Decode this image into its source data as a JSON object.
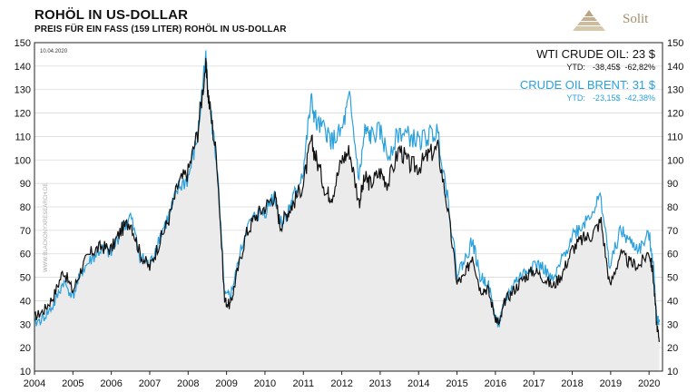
{
  "header": {
    "title": "ROHÖL IN US-DOLLAR",
    "subtitle": "PREIS FÜR EIN FASS (159 LITER)  ROHÖL IN  US-DOLLAR",
    "logo_text": "Solit"
  },
  "chart_data": {
    "type": "line",
    "date_label": "10.04.2020",
    "watermark": "WWW.BLACKONYXRESEARCH.DE",
    "ylim": [
      10,
      150
    ],
    "yticks": [
      10,
      20,
      30,
      40,
      50,
      60,
      70,
      80,
      90,
      100,
      110,
      120,
      130,
      140,
      150
    ],
    "xlim": [
      2004.0,
      2020.35
    ],
    "xticks": [
      "2004",
      "2005",
      "2006",
      "2007",
      "2008",
      "2009",
      "2010",
      "2011",
      "2012",
      "2013",
      "2014",
      "2015",
      "2016",
      "2017",
      "2018",
      "2019",
      "2020"
    ],
    "grid": "horizontal",
    "legend_position": "top-right",
    "series": [
      {
        "name": "WTI CRUDE OIL",
        "color": "#111111",
        "fill": "#ebebeb",
        "legend_value": "23 $",
        "ytd_label": "YTD:",
        "ytd_abs": "-38,45$",
        "ytd_pct": "-62,82%",
        "x": [
          2004.0,
          2004.25,
          2004.5,
          2004.75,
          2005.0,
          2005.25,
          2005.5,
          2005.75,
          2006.0,
          2006.25,
          2006.5,
          2006.75,
          2007.0,
          2007.25,
          2007.5,
          2007.75,
          2008.0,
          2008.25,
          2008.45,
          2008.55,
          2008.75,
          2008.95,
          2009.1,
          2009.25,
          2009.5,
          2009.75,
          2010.0,
          2010.25,
          2010.4,
          2010.6,
          2010.75,
          2011.0,
          2011.2,
          2011.35,
          2011.6,
          2011.75,
          2012.0,
          2012.2,
          2012.45,
          2012.6,
          2012.75,
          2013.0,
          2013.2,
          2013.5,
          2013.75,
          2014.0,
          2014.25,
          2014.5,
          2014.75,
          2015.0,
          2015.2,
          2015.4,
          2015.6,
          2015.8,
          2016.0,
          2016.1,
          2016.25,
          2016.5,
          2016.75,
          2017.0,
          2017.25,
          2017.5,
          2017.75,
          2018.0,
          2018.25,
          2018.5,
          2018.75,
          2018.98,
          2019.25,
          2019.5,
          2019.75,
          2020.0,
          2020.1,
          2020.2,
          2020.27
        ],
        "values": [
          33,
          36,
          42,
          53,
          44,
          55,
          61,
          63,
          62,
          70,
          74,
          60,
          54,
          65,
          75,
          90,
          95,
          112,
          140,
          124,
          100,
          40,
          38,
          50,
          68,
          76,
          80,
          85,
          72,
          78,
          82,
          90,
          108,
          100,
          86,
          85,
          100,
          104,
          82,
          92,
          90,
          95,
          90,
          105,
          98,
          97,
          102,
          105,
          80,
          48,
          50,
          60,
          45,
          45,
          33,
          30,
          40,
          45,
          50,
          53,
          50,
          46,
          52,
          62,
          66,
          68,
          74,
          46,
          60,
          56,
          55,
          61,
          52,
          30,
          23
        ]
      },
      {
        "name": "CRUDE OIL BRENT",
        "color": "#2aa0dc",
        "legend_value": "31 $",
        "ytd_label": "YTD:",
        "ytd_abs": "-23,15$",
        "ytd_pct": "-42,38%",
        "x": [
          2004.0,
          2004.25,
          2004.5,
          2004.75,
          2005.0,
          2005.25,
          2005.5,
          2005.75,
          2006.0,
          2006.25,
          2006.5,
          2006.75,
          2007.0,
          2007.25,
          2007.5,
          2007.75,
          2008.0,
          2008.25,
          2008.45,
          2008.55,
          2008.75,
          2008.95,
          2009.1,
          2009.25,
          2009.5,
          2009.75,
          2010.0,
          2010.25,
          2010.4,
          2010.6,
          2010.75,
          2011.0,
          2011.2,
          2011.35,
          2011.6,
          2011.75,
          2012.0,
          2012.2,
          2012.45,
          2012.6,
          2012.75,
          2013.0,
          2013.2,
          2013.5,
          2013.75,
          2014.0,
          2014.25,
          2014.5,
          2014.75,
          2015.0,
          2015.2,
          2015.4,
          2015.6,
          2015.8,
          2016.0,
          2016.1,
          2016.25,
          2016.5,
          2016.75,
          2017.0,
          2017.25,
          2017.5,
          2017.75,
          2018.0,
          2018.25,
          2018.5,
          2018.75,
          2018.98,
          2019.25,
          2019.5,
          2019.75,
          2020.0,
          2020.1,
          2020.2,
          2020.27
        ],
        "values": [
          30,
          33,
          38,
          48,
          42,
          53,
          58,
          62,
          60,
          70,
          76,
          59,
          55,
          67,
          76,
          88,
          92,
          110,
          144,
          125,
          98,
          42,
          42,
          52,
          70,
          76,
          78,
          86,
          73,
          78,
          84,
          96,
          125,
          115,
          112,
          108,
          112,
          126,
          92,
          112,
          110,
          112,
          102,
          112,
          110,
          108,
          110,
          112,
          85,
          52,
          57,
          66,
          50,
          48,
          33,
          30,
          40,
          48,
          52,
          56,
          54,
          48,
          58,
          68,
          72,
          78,
          84,
          54,
          70,
          65,
          62,
          68,
          58,
          33,
          31
        ]
      }
    ]
  }
}
